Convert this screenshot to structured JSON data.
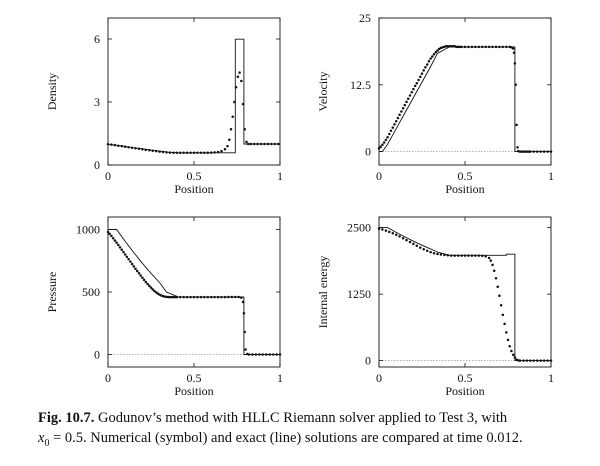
{
  "figure": {
    "caption": {
      "label": "Fig. 10.7.",
      "line1": "Godunov’s method with HLLC Riemann solver applied to Test 3, with",
      "x0_symbol": "x",
      "x0_subscript": "0",
      "x0_value": "= 0.5. Numerical (symbol) and exact (line) solutions are compared at time 0.012."
    }
  },
  "chart_data": [
    {
      "type": "line",
      "title": "",
      "xlabel": "Position",
      "ylabel": "Density",
      "xlim": [
        0,
        1
      ],
      "ylim": [
        0,
        7
      ],
      "xticks": [
        "0",
        "0.5",
        "1"
      ],
      "xtick_values": [
        0,
        0.5,
        1
      ],
      "yticks": [
        "0",
        "3",
        "6"
      ],
      "ytick_values": [
        0,
        3,
        6
      ],
      "zero_line": false,
      "series": [
        {
          "name": "exact",
          "style": "line",
          "x": [
            0,
            0.05,
            0.1,
            0.15,
            0.2,
            0.25,
            0.3,
            0.35,
            0.41,
            0.45,
            0.5,
            0.55,
            0.6,
            0.65,
            0.7,
            0.74,
            0.74,
            0.79,
            0.79,
            0.8,
            0.8,
            1.0
          ],
          "y": [
            0.99,
            0.94,
            0.88,
            0.82,
            0.77,
            0.71,
            0.66,
            0.61,
            0.58,
            0.58,
            0.58,
            0.58,
            0.58,
            0.58,
            0.58,
            0.58,
            5.99,
            5.99,
            1.0,
            1.0,
            1.0,
            1.0
          ]
        },
        {
          "name": "numerical",
          "style": "symbol",
          "x": [
            0.0,
            0.02,
            0.04,
            0.06,
            0.08,
            0.1,
            0.12,
            0.14,
            0.16,
            0.18,
            0.2,
            0.22,
            0.24,
            0.26,
            0.28,
            0.3,
            0.32,
            0.34,
            0.36,
            0.38,
            0.4,
            0.42,
            0.44,
            0.46,
            0.48,
            0.5,
            0.52,
            0.54,
            0.56,
            0.58,
            0.6,
            0.62,
            0.64,
            0.66,
            0.68,
            0.695,
            0.705,
            0.715,
            0.725,
            0.735,
            0.745,
            0.755,
            0.765,
            0.775,
            0.785,
            0.795,
            0.805,
            0.815,
            0.83,
            0.85,
            0.87,
            0.89,
            0.91,
            0.93,
            0.95,
            0.97,
            0.99
          ],
          "y": [
            0.99,
            0.97,
            0.95,
            0.92,
            0.9,
            0.87,
            0.85,
            0.82,
            0.8,
            0.77,
            0.75,
            0.72,
            0.7,
            0.68,
            0.66,
            0.64,
            0.62,
            0.6,
            0.59,
            0.58,
            0.58,
            0.58,
            0.58,
            0.58,
            0.58,
            0.58,
            0.58,
            0.58,
            0.58,
            0.58,
            0.59,
            0.6,
            0.62,
            0.66,
            0.75,
            0.9,
            1.2,
            1.7,
            2.3,
            3.0,
            3.7,
            4.2,
            4.4,
            4.0,
            2.9,
            1.7,
            1.1,
            1.0,
            1.0,
            1.0,
            1.0,
            1.0,
            1.0,
            1.0,
            1.0,
            1.0,
            1.0
          ]
        }
      ]
    },
    {
      "type": "line",
      "title": "",
      "xlabel": "Position",
      "ylabel": "Velocity",
      "xlim": [
        0,
        1
      ],
      "ylim": [
        -2.5,
        25
      ],
      "xticks": [
        "0",
        "0.5",
        "1"
      ],
      "xtick_values": [
        0,
        0.5,
        1
      ],
      "yticks": [
        "0",
        "12.5",
        "25"
      ],
      "ytick_values": [
        0,
        12.5,
        25
      ],
      "zero_line": true,
      "series": [
        {
          "name": "exact",
          "style": "line",
          "x": [
            0,
            0.02,
            0.05,
            0.1,
            0.15,
            0.2,
            0.25,
            0.3,
            0.34,
            0.41,
            0.5,
            0.6,
            0.7,
            0.79,
            0.79,
            1.0
          ],
          "y": [
            0,
            0,
            1.4,
            4.3,
            7.2,
            10.1,
            13.0,
            15.9,
            18.4,
            19.6,
            19.6,
            19.6,
            19.6,
            19.6,
            0,
            0
          ]
        },
        {
          "name": "numerical",
          "style": "symbol",
          "x": [
            0.0,
            0.01,
            0.02,
            0.03,
            0.04,
            0.05,
            0.06,
            0.07,
            0.08,
            0.09,
            0.1,
            0.11,
            0.12,
            0.13,
            0.14,
            0.15,
            0.16,
            0.17,
            0.18,
            0.19,
            0.2,
            0.21,
            0.22,
            0.23,
            0.24,
            0.25,
            0.26,
            0.27,
            0.28,
            0.29,
            0.3,
            0.31,
            0.32,
            0.33,
            0.34,
            0.35,
            0.36,
            0.37,
            0.38,
            0.39,
            0.4,
            0.41,
            0.42,
            0.43,
            0.44,
            0.45,
            0.46,
            0.47,
            0.48,
            0.5,
            0.52,
            0.54,
            0.56,
            0.58,
            0.6,
            0.62,
            0.64,
            0.66,
            0.68,
            0.7,
            0.72,
            0.74,
            0.76,
            0.77,
            0.78,
            0.785,
            0.79,
            0.795,
            0.8,
            0.805,
            0.81,
            0.82,
            0.83,
            0.84,
            0.85,
            0.86,
            0.87,
            0.88,
            0.9,
            0.92,
            0.94,
            0.96,
            0.98,
            1.0
          ],
          "y": [
            0.6,
            0.9,
            1.3,
            1.7,
            2.2,
            2.7,
            3.3,
            3.9,
            4.5,
            5.1,
            5.7,
            6.3,
            6.9,
            7.5,
            8.1,
            8.7,
            9.3,
            9.9,
            10.5,
            11.1,
            11.7,
            12.3,
            12.8,
            13.4,
            14.0,
            14.6,
            15.2,
            15.8,
            16.3,
            16.9,
            17.4,
            17.8,
            18.2,
            18.6,
            18.9,
            19.2,
            19.4,
            19.5,
            19.6,
            19.7,
            19.7,
            19.7,
            19.7,
            19.7,
            19.7,
            19.6,
            19.6,
            19.6,
            19.6,
            19.6,
            19.6,
            19.6,
            19.6,
            19.6,
            19.6,
            19.6,
            19.6,
            19.6,
            19.6,
            19.6,
            19.6,
            19.6,
            19.6,
            19.5,
            19.3,
            18.5,
            16.5,
            12.5,
            5.0,
            0.8,
            0.1,
            0,
            0,
            0,
            0,
            0,
            0,
            0,
            0,
            0,
            0,
            0,
            0,
            0
          ]
        }
      ]
    },
    {
      "type": "line",
      "title": "",
      "xlabel": "Position",
      "ylabel": "Pressure",
      "xlim": [
        0,
        1
      ],
      "ylim": [
        -100,
        1100
      ],
      "xticks": [
        "0",
        "0.5",
        "1"
      ],
      "xtick_values": [
        0,
        0.5,
        1
      ],
      "yticks": [
        "0",
        "500",
        "1000"
      ],
      "ytick_values": [
        0,
        500,
        1000
      ],
      "zero_line": true,
      "series": [
        {
          "name": "exact",
          "style": "line",
          "x": [
            0,
            0.05,
            0.1,
            0.15,
            0.2,
            0.25,
            0.3,
            0.34,
            0.41,
            0.5,
            0.6,
            0.7,
            0.79,
            0.79,
            1.0
          ],
          "y": [
            1000,
            1000,
            905,
            815,
            730,
            650,
            575,
            500,
            460,
            460,
            460,
            460,
            460,
            0.01,
            0.01
          ]
        },
        {
          "name": "numerical",
          "style": "symbol",
          "x": [
            0.0,
            0.01,
            0.02,
            0.03,
            0.04,
            0.05,
            0.06,
            0.07,
            0.08,
            0.09,
            0.1,
            0.11,
            0.12,
            0.13,
            0.14,
            0.15,
            0.16,
            0.17,
            0.18,
            0.19,
            0.2,
            0.21,
            0.22,
            0.23,
            0.24,
            0.25,
            0.26,
            0.27,
            0.28,
            0.29,
            0.3,
            0.31,
            0.32,
            0.33,
            0.34,
            0.35,
            0.36,
            0.37,
            0.38,
            0.39,
            0.4,
            0.42,
            0.44,
            0.46,
            0.48,
            0.5,
            0.52,
            0.54,
            0.56,
            0.58,
            0.6,
            0.62,
            0.64,
            0.66,
            0.68,
            0.7,
            0.72,
            0.74,
            0.76,
            0.775,
            0.785,
            0.79,
            0.795,
            0.8,
            0.81,
            0.82,
            0.84,
            0.86,
            0.88,
            0.9,
            0.92,
            0.94,
            0.96,
            0.98,
            1.0
          ],
          "y": [
            980,
            965,
            948,
            930,
            912,
            895,
            876,
            857,
            838,
            819,
            800,
            781,
            762,
            743,
            724,
            705,
            686,
            668,
            650,
            632,
            614,
            597,
            580,
            564,
            549,
            535,
            521,
            508,
            497,
            487,
            479,
            472,
            467,
            463,
            461,
            460,
            459,
            459,
            459,
            459,
            459,
            459,
            459,
            459,
            459,
            459,
            459,
            459,
            459,
            459,
            459,
            459,
            459,
            459,
            459,
            460,
            460,
            460,
            460,
            455,
            420,
            330,
            180,
            40,
            5,
            0.01,
            0.01,
            0.01,
            0.01,
            0.01,
            0.01,
            0.01,
            0.01,
            0.01,
            0.01
          ]
        }
      ]
    },
    {
      "type": "line",
      "title": "",
      "xlabel": "Position",
      "ylabel": "Internal energy",
      "xlim": [
        0,
        1
      ],
      "ylim": [
        -120,
        2700
      ],
      "xticks": [
        "0",
        "0.5",
        "1"
      ],
      "xtick_values": [
        0,
        0.5,
        1
      ],
      "yticks": [
        "0",
        "1250",
        "2500"
      ],
      "ytick_values": [
        0,
        1250,
        2500
      ],
      "zero_line": true,
      "series": [
        {
          "name": "exact",
          "style": "line",
          "x": [
            0,
            0.05,
            0.1,
            0.15,
            0.2,
            0.25,
            0.3,
            0.34,
            0.41,
            0.5,
            0.6,
            0.74,
            0.74,
            0.79,
            0.79,
            1.0
          ],
          "y": [
            2500,
            2500,
            2410,
            2325,
            2245,
            2170,
            2100,
            2040,
            1980,
            1980,
            1980,
            1980,
            2000,
            2000,
            0.02,
            0.02
          ]
        },
        {
          "name": "numerical",
          "style": "symbol",
          "x": [
            0.0,
            0.02,
            0.04,
            0.06,
            0.08,
            0.1,
            0.12,
            0.14,
            0.16,
            0.18,
            0.2,
            0.22,
            0.24,
            0.26,
            0.28,
            0.3,
            0.32,
            0.34,
            0.36,
            0.38,
            0.4,
            0.42,
            0.44,
            0.46,
            0.48,
            0.5,
            0.52,
            0.54,
            0.56,
            0.58,
            0.6,
            0.62,
            0.64,
            0.65,
            0.66,
            0.67,
            0.68,
            0.69,
            0.7,
            0.71,
            0.72,
            0.73,
            0.74,
            0.75,
            0.76,
            0.77,
            0.78,
            0.79,
            0.8,
            0.81,
            0.82,
            0.84,
            0.86,
            0.88,
            0.9,
            0.92,
            0.94,
            0.96,
            0.98,
            1.0
          ],
          "y": [
            2480,
            2465,
            2445,
            2420,
            2395,
            2365,
            2335,
            2300,
            2265,
            2230,
            2195,
            2160,
            2125,
            2095,
            2065,
            2040,
            2020,
            2005,
            1995,
            1985,
            1980,
            1975,
            1975,
            1975,
            1975,
            1975,
            1975,
            1975,
            1975,
            1975,
            1970,
            1960,
            1930,
            1880,
            1800,
            1690,
            1550,
            1390,
            1220,
            1040,
            860,
            690,
            530,
            390,
            270,
            180,
            110,
            60,
            20,
            5,
            0.02,
            0.02,
            0.02,
            0.02,
            0.02,
            0.02,
            0.02,
            0.02,
            0.02,
            0.02
          ]
        }
      ]
    }
  ]
}
